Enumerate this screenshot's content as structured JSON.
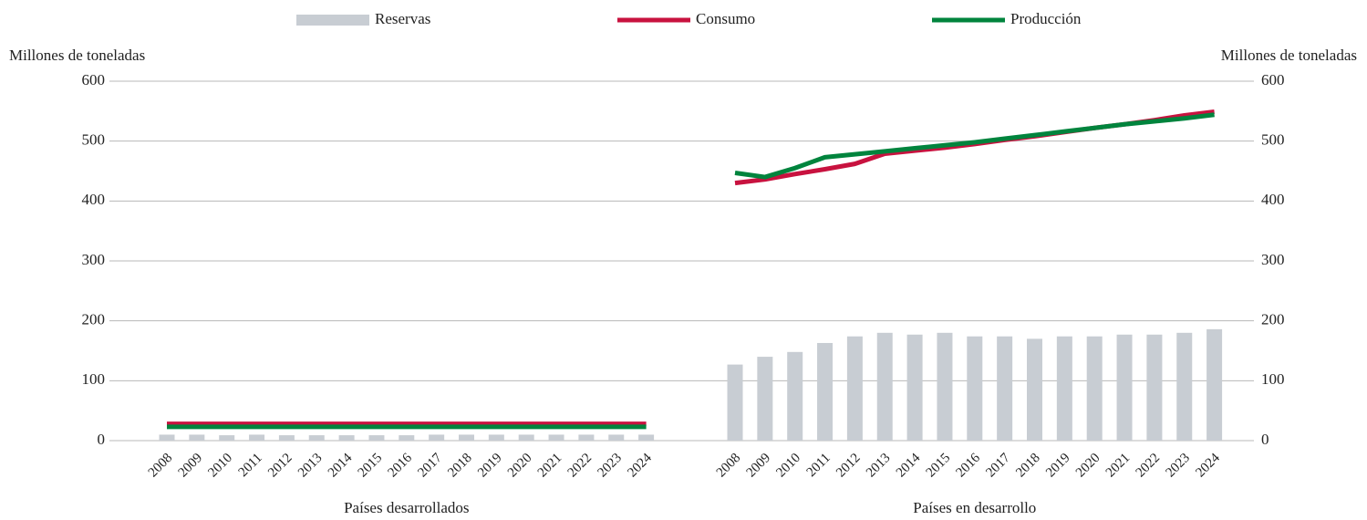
{
  "chart_data": {
    "type": "bar",
    "ylabel": "Millones de toneladas",
    "y2label": "Millones de toneladas",
    "ylim": [
      0,
      600
    ],
    "yticks": [
      0,
      100,
      200,
      300,
      400,
      500,
      600
    ],
    "y2lim": [
      0,
      600
    ],
    "y2ticks": [
      0,
      100,
      200,
      300,
      400,
      500,
      600
    ],
    "grid": true,
    "legend": "top",
    "groups": [
      {
        "label": "Países desarrollados",
        "axis": "y",
        "categories": [
          "2008",
          "2009",
          "2010",
          "2011",
          "2012",
          "2013",
          "2014",
          "2015",
          "2016",
          "2017",
          "2018",
          "2019",
          "2020",
          "2021",
          "2022",
          "2023",
          "2024"
        ]
      },
      {
        "label": "Países en desarrollo",
        "axis": "y2",
        "categories": [
          "2008",
          "2009",
          "2010",
          "2011",
          "2012",
          "2013",
          "2014",
          "2015",
          "2016",
          "2017",
          "2018",
          "2019",
          "2020",
          "2021",
          "2022",
          "2023",
          "2024"
        ]
      }
    ],
    "series": [
      {
        "name": "Reservas",
        "type": "bar",
        "color": "#c8cdd3",
        "values": [
          [
            10,
            10,
            9,
            10,
            9,
            9,
            9,
            9,
            9,
            10,
            10,
            10,
            10,
            10,
            10,
            10,
            10
          ],
          [
            127,
            140,
            148,
            163,
            174,
            180,
            177,
            180,
            174,
            174,
            170,
            174,
            174,
            177,
            177,
            180,
            186
          ]
        ]
      },
      {
        "name": "Consumo",
        "type": "line",
        "color": "#c8123f",
        "values": [
          [
            28,
            28,
            28,
            28,
            28,
            28,
            28,
            28,
            28,
            28,
            28,
            28,
            28,
            28,
            28,
            28,
            28
          ],
          [
            430,
            436,
            445,
            453,
            462,
            479,
            484,
            489,
            495,
            502,
            508,
            515,
            522,
            528,
            535,
            543,
            549
          ]
        ]
      },
      {
        "name": "Producción",
        "type": "line",
        "color": "#00843d",
        "values": [
          [
            23,
            23,
            23,
            23,
            23,
            23,
            23,
            23,
            23,
            23,
            23,
            23,
            23,
            23,
            23,
            23,
            23
          ],
          [
            447,
            440,
            455,
            473,
            478,
            483,
            488,
            493,
            498,
            504,
            510,
            516,
            522,
            528,
            533,
            538,
            544
          ]
        ]
      }
    ]
  }
}
